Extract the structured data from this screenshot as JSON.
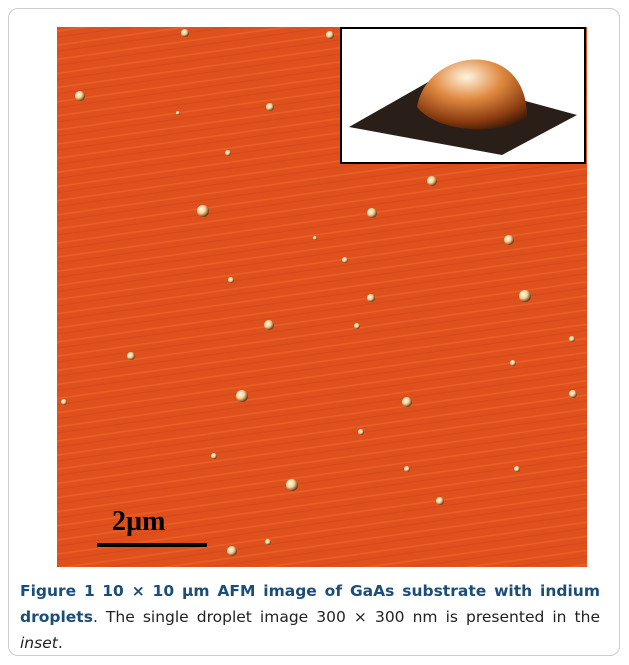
{
  "figure": {
    "scale_bar": "2µm",
    "caption": {
      "label": "Figure 1",
      "title": "10 × 10 µm AFM image of GaAs substrate with indium droplets",
      "text": ". The single droplet image 300 × 300 nm is presented in the ",
      "emphasis": "inset",
      "end": "."
    }
  }
}
